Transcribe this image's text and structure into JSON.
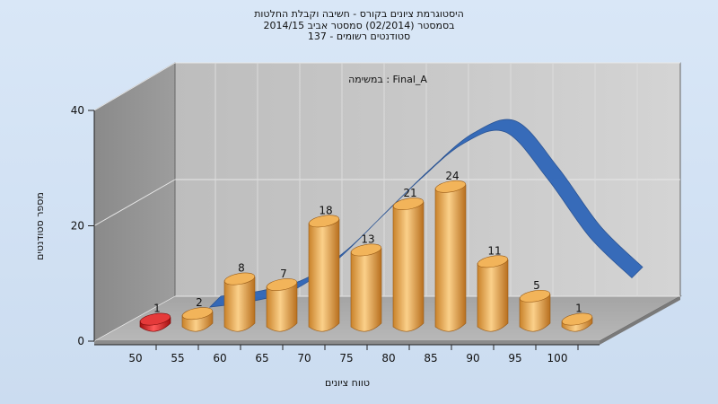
{
  "chart_data": {
    "type": "bar",
    "title_lines": [
      "היסטוגרמת ציונים בקורס - חשיבה וקבלת החלטות",
      "בסמסטר (02/2014) סמסטר אביב 2014/15",
      "137 - סטודנטים רשומים"
    ],
    "annotation": "במשימה : Final_A",
    "xlabel": "טווח ציונים",
    "ylabel": "מספר סטודנטים",
    "x_ticks": [
      "50",
      "55",
      "60",
      "65",
      "70",
      "75",
      "80",
      "85",
      "90",
      "95",
      "100"
    ],
    "y_ticks": [
      "0",
      "20",
      "40"
    ],
    "ylim": [
      0,
      40
    ],
    "categories": [
      "50",
      "55",
      "60",
      "65",
      "70",
      "75",
      "80",
      "85",
      "90",
      "95",
      "100"
    ],
    "values": [
      1,
      2,
      8,
      7,
      18,
      13,
      21,
      24,
      11,
      5,
      1
    ],
    "bar_colors": [
      "#d61c1c",
      "#e5a144",
      "#e5a144",
      "#e5a144",
      "#e5a144",
      "#e5a144",
      "#e5a144",
      "#e5a144",
      "#e5a144",
      "#e5a144",
      "#e5a144"
    ],
    "curve_values": [
      0,
      1,
      3,
      8,
      15,
      22,
      28,
      30,
      22,
      12,
      5
    ],
    "curve_color": "#2f66b8",
    "grid": true
  }
}
